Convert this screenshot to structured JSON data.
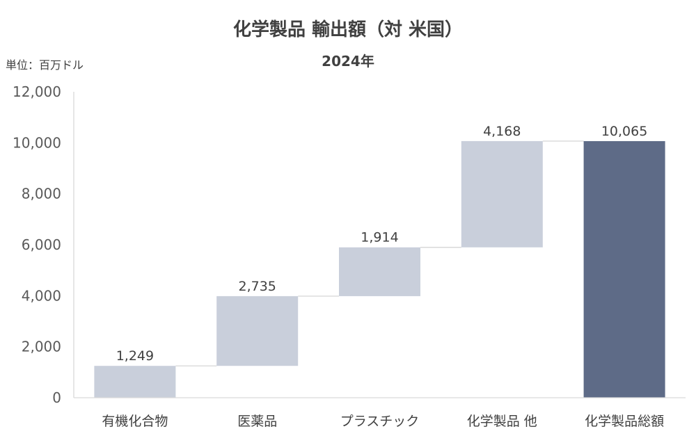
{
  "chart_data": {
    "type": "bar",
    "title": "化学製品 輸出額（対 米国）",
    "subtitle": "2024年",
    "unit_label": "単位：百万ドル",
    "categories": [
      "有機化合物",
      "医薬品",
      "プラスチック",
      "化学製品 他",
      "化学製品総額"
    ],
    "values": [
      1249,
      2735,
      1914,
      4168,
      10065
    ],
    "value_labels": [
      "1,249",
      "2,735",
      "1,914",
      "4,168",
      "10,065"
    ],
    "total_index": 4,
    "ylim": [
      0,
      12000
    ],
    "yticks": [
      0,
      2000,
      4000,
      6000,
      8000,
      10000,
      12000
    ],
    "ytick_labels": [
      "0",
      "2,000",
      "4,000",
      "6,000",
      "8,000",
      "10,000",
      "12,000"
    ],
    "colors": {
      "step": "#C9CFDB",
      "total": "#5E6B87",
      "connector": "#D0D0D0",
      "axis": "#D9D9D9"
    }
  }
}
